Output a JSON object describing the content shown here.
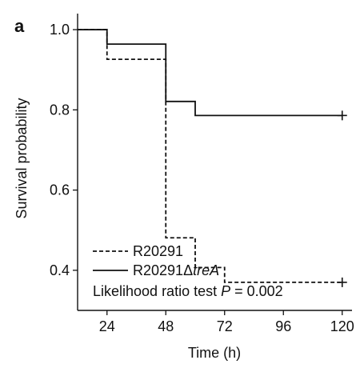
{
  "panel_label": "a",
  "chart_data": {
    "type": "line",
    "subtype": "step",
    "title": "",
    "xlabel": "Time (h)",
    "ylabel": "Survival probability",
    "xlim": [
      12,
      124
    ],
    "ylim": [
      0.3,
      1.04
    ],
    "x_ticks": [
      24,
      48,
      72,
      96,
      120
    ],
    "x_tick_labels": [
      "24",
      "48",
      "72",
      "96",
      "120"
    ],
    "y_ticks": [
      0.4,
      0.6,
      0.8,
      1.0
    ],
    "y_tick_labels": [
      "0.4",
      "0.6",
      "0.8",
      "1.0"
    ],
    "grid": false,
    "legend_position": "bottom-left",
    "series": [
      {
        "name": "R20291",
        "style": "dashed",
        "color": "#111111",
        "points": [
          [
            12,
            1.0
          ],
          [
            24,
            1.0
          ],
          [
            24,
            0.926
          ],
          [
            48,
            0.926
          ],
          [
            48,
            0.481
          ],
          [
            60,
            0.481
          ],
          [
            60,
            0.407
          ],
          [
            72,
            0.407
          ],
          [
            72,
            0.37
          ],
          [
            120,
            0.37
          ]
        ],
        "censor_marks": [
          [
            120,
            0.37
          ]
        ]
      },
      {
        "name": "R20291",
        "name_suffix_symbol": "Δ",
        "name_suffix_italic": "treA",
        "style": "solid",
        "color": "#111111",
        "points": [
          [
            12,
            1.0
          ],
          [
            24,
            1.0
          ],
          [
            24,
            0.964
          ],
          [
            48,
            0.964
          ],
          [
            48,
            0.821
          ],
          [
            60,
            0.821
          ],
          [
            60,
            0.786
          ],
          [
            120,
            0.786
          ]
        ],
        "censor_marks": [
          [
            120,
            0.786
          ]
        ]
      }
    ],
    "annotation": {
      "prefix": "Likelihood ratio test ",
      "italic": "P",
      "suffix": " = 0.002"
    }
  }
}
